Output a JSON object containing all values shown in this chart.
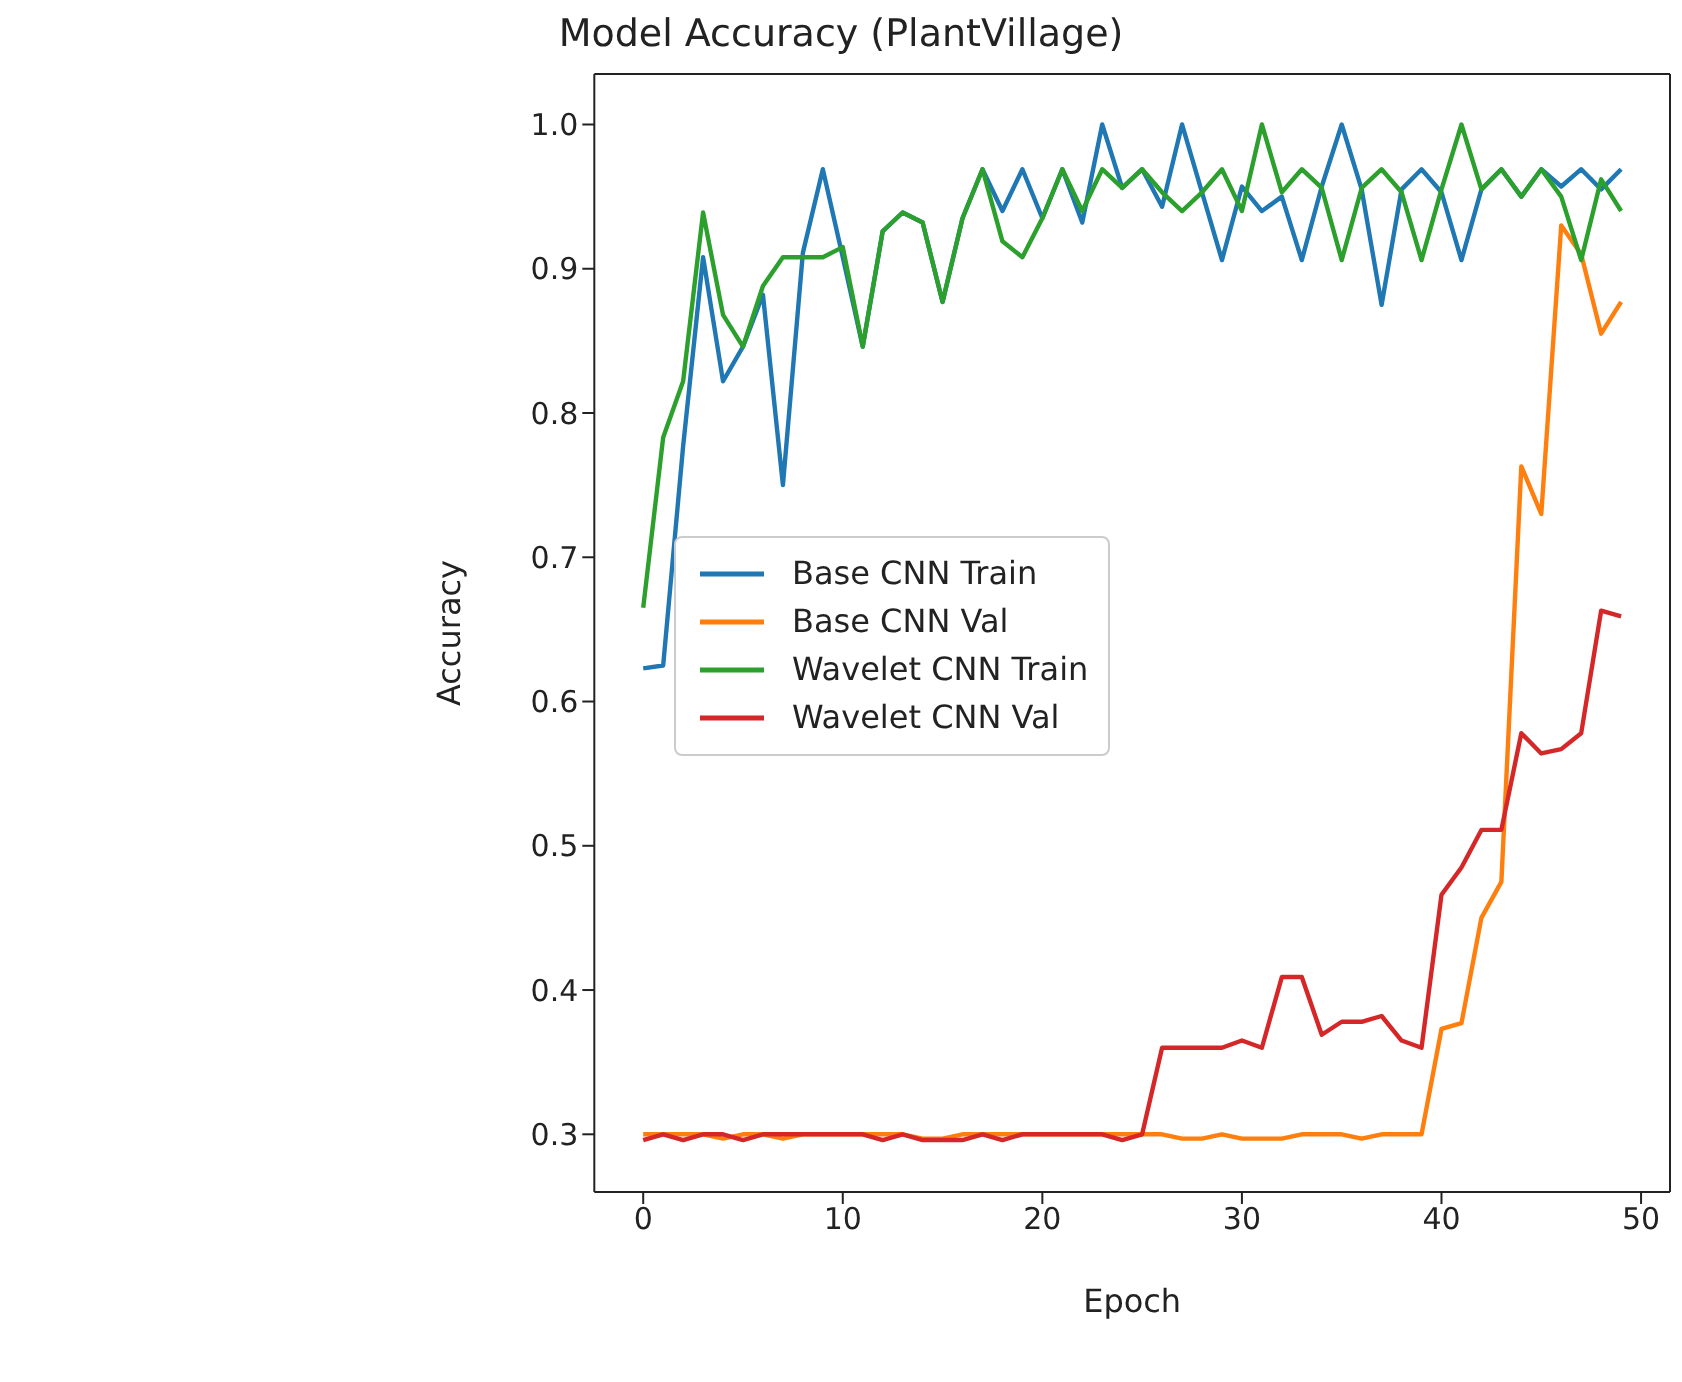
{
  "chart_data": {
    "type": "line",
    "title": "Model Accuracy (PlantVillage)",
    "xlabel": "Epoch",
    "ylabel": "Accuracy",
    "x": [
      0,
      1,
      2,
      3,
      4,
      5,
      6,
      7,
      8,
      9,
      10,
      11,
      12,
      13,
      14,
      15,
      16,
      17,
      18,
      19,
      20,
      21,
      22,
      23,
      24,
      25,
      26,
      27,
      28,
      29,
      30,
      31,
      32,
      33,
      34,
      35,
      36,
      37,
      38,
      39,
      40,
      41,
      42,
      43,
      44,
      45,
      46,
      47,
      48,
      49
    ],
    "series": [
      {
        "name": "Base CNN Train",
        "color": "#1f77b4",
        "values": [
          0.623,
          0.625,
          0.777,
          0.908,
          0.822,
          0.846,
          0.882,
          0.75,
          0.911,
          0.969,
          0.908,
          0.846,
          0.926,
          0.939,
          0.932,
          0.877,
          0.935,
          0.969,
          0.94,
          0.969,
          0.935,
          0.969,
          0.932,
          1.0,
          0.956,
          0.969,
          0.943,
          1.0,
          0.953,
          0.906,
          0.957,
          0.94,
          0.95,
          0.906,
          0.957,
          1.0,
          0.955,
          0.875,
          0.955,
          0.969,
          0.953,
          0.906,
          0.955,
          0.969,
          0.95,
          0.969,
          0.957,
          0.969,
          0.955,
          0.969
        ]
      },
      {
        "name": "Base CNN Val",
        "color": "#ff7f0e",
        "values": [
          0.3,
          0.3,
          0.3,
          0.3,
          0.297,
          0.3,
          0.3,
          0.297,
          0.3,
          0.3,
          0.3,
          0.3,
          0.3,
          0.3,
          0.297,
          0.297,
          0.3,
          0.3,
          0.3,
          0.3,
          0.3,
          0.3,
          0.3,
          0.3,
          0.3,
          0.3,
          0.3,
          0.297,
          0.297,
          0.3,
          0.297,
          0.297,
          0.297,
          0.3,
          0.3,
          0.3,
          0.297,
          0.3,
          0.3,
          0.3,
          0.373,
          0.377,
          0.45,
          0.475,
          0.763,
          0.73,
          0.93,
          0.91,
          0.855,
          0.877
        ]
      },
      {
        "name": "Wavelet CNN Train",
        "color": "#2ca02c",
        "values": [
          0.665,
          0.783,
          0.822,
          0.939,
          0.868,
          0.846,
          0.888,
          0.908,
          0.908,
          0.908,
          0.915,
          0.846,
          0.926,
          0.939,
          0.932,
          0.877,
          0.935,
          0.969,
          0.919,
          0.908,
          0.935,
          0.969,
          0.94,
          0.969,
          0.956,
          0.969,
          0.953,
          0.94,
          0.953,
          0.969,
          0.94,
          1.0,
          0.953,
          0.969,
          0.956,
          0.906,
          0.956,
          0.969,
          0.953,
          0.906,
          0.955,
          1.0,
          0.955,
          0.969,
          0.95,
          0.969,
          0.95,
          0.906,
          0.962,
          0.94
        ]
      },
      {
        "name": "Wavelet CNN Val",
        "color": "#d62728",
        "values": [
          0.296,
          0.3,
          0.296,
          0.3,
          0.3,
          0.296,
          0.3,
          0.3,
          0.3,
          0.3,
          0.3,
          0.3,
          0.296,
          0.3,
          0.296,
          0.296,
          0.296,
          0.3,
          0.296,
          0.3,
          0.3,
          0.3,
          0.3,
          0.3,
          0.296,
          0.3,
          0.36,
          0.36,
          0.36,
          0.36,
          0.365,
          0.36,
          0.409,
          0.409,
          0.369,
          0.378,
          0.378,
          0.382,
          0.365,
          0.36,
          0.466,
          0.485,
          0.511,
          0.511,
          0.578,
          0.564,
          0.567,
          0.578,
          0.663,
          0.659
        ]
      }
    ],
    "xlim": [
      -2.45,
      51.45
    ],
    "xticks": [
      0,
      10,
      20,
      30,
      40,
      50
    ],
    "ylim": [
      0.26,
      1.035
    ],
    "yticks": [
      {
        "value": 0.3,
        "label": "0.3"
      },
      {
        "value": 0.4,
        "label": "0.4"
      },
      {
        "value": 0.5,
        "label": "0.5"
      },
      {
        "value": 0.6,
        "label": "0.6"
      },
      {
        "value": 0.7,
        "label": "0.7"
      },
      {
        "value": 0.8,
        "label": "0.8"
      },
      {
        "value": 0.9,
        "label": "0.9"
      },
      {
        "value": 1.0,
        "label": "1.0"
      }
    ],
    "legend": "center",
    "grid": false,
    "marker": "none",
    "line_style": "solid"
  }
}
